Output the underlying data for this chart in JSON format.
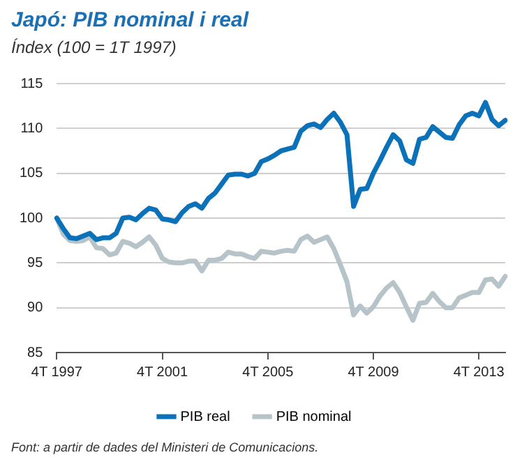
{
  "chart_data": {
    "type": "line",
    "title": "Japó: PIB nominal i real",
    "subtitle": "Índex (100 = 1T 1997)",
    "categories": [
      "4T 1997",
      null,
      null,
      null,
      null,
      null,
      null,
      null,
      null,
      null,
      null,
      null,
      null,
      null,
      null,
      null,
      "4T 2001",
      null,
      null,
      null,
      null,
      null,
      null,
      null,
      null,
      null,
      null,
      null,
      null,
      null,
      null,
      null,
      "4T 2005",
      null,
      null,
      null,
      null,
      null,
      null,
      null,
      null,
      null,
      null,
      null,
      null,
      null,
      null,
      null,
      "4T 2009",
      null,
      null,
      null,
      null,
      null,
      null,
      null,
      null,
      null,
      null,
      null,
      null,
      null,
      null,
      null,
      "4T 2013",
      null,
      null,
      null,
      null
    ],
    "series": [
      {
        "name": "PIB real",
        "color": "#0b72b9",
        "values": [
          100,
          98.8,
          97.8,
          97.7,
          98.0,
          98.3,
          97.6,
          97.8,
          97.8,
          98.3,
          100,
          100.1,
          99.8,
          100.5,
          101.1,
          100.9,
          99.9,
          99.8,
          99.6,
          100.6,
          101.3,
          101.6,
          101.1,
          102.2,
          102.8,
          103.8,
          104.8,
          104.9,
          104.9,
          104.7,
          105.0,
          106.3,
          106.6,
          107.0,
          107.5,
          107.7,
          107.9,
          109.7,
          110.3,
          110.5,
          110.1,
          111.0,
          111.7,
          110.7,
          109.3,
          101.3,
          103.2,
          103.3,
          105.0,
          106.4,
          107.9,
          109.3,
          108.6,
          106.5,
          106.1,
          108.8,
          109.0,
          110.2,
          109.6,
          109.0,
          108.9,
          110.4,
          111.4,
          111.7,
          111.4,
          112.9,
          111.0,
          110.3,
          110.9
        ]
      },
      {
        "name": "PIB nominal",
        "color": "#b6c4ca",
        "values": [
          100,
          98.2,
          97.5,
          97.4,
          97.5,
          97.9,
          96.7,
          96.6,
          95.9,
          96.1,
          97.4,
          97.2,
          96.8,
          97.3,
          97.9,
          97.0,
          95.5,
          95.1,
          95.0,
          95.0,
          95.2,
          95.2,
          94.1,
          95.3,
          95.3,
          95.5,
          96.2,
          96.0,
          96.0,
          95.7,
          95.5,
          96.3,
          96.2,
          96.1,
          96.3,
          96.4,
          96.3,
          97.6,
          98.0,
          97.3,
          97.6,
          97.9,
          96.6,
          94.8,
          92.9,
          89.2,
          90.2,
          89.4,
          90.1,
          91.3,
          92.2,
          92.8,
          91.7,
          90.1,
          88.6,
          90.5,
          90.6,
          91.6,
          90.7,
          90.0,
          90.0,
          91.1,
          91.4,
          91.7,
          91.7,
          93.1,
          93.2,
          92.4,
          93.5
        ]
      }
    ],
    "ylim": [
      85,
      115
    ],
    "yticks": [
      85,
      90,
      95,
      100,
      105,
      110,
      115
    ],
    "grid": "y",
    "legend": "bottom",
    "marker": "none",
    "line_style": "solid",
    "annotations": [
      "Font: a partir de dades del Ministeri de Comunicacions."
    ]
  }
}
